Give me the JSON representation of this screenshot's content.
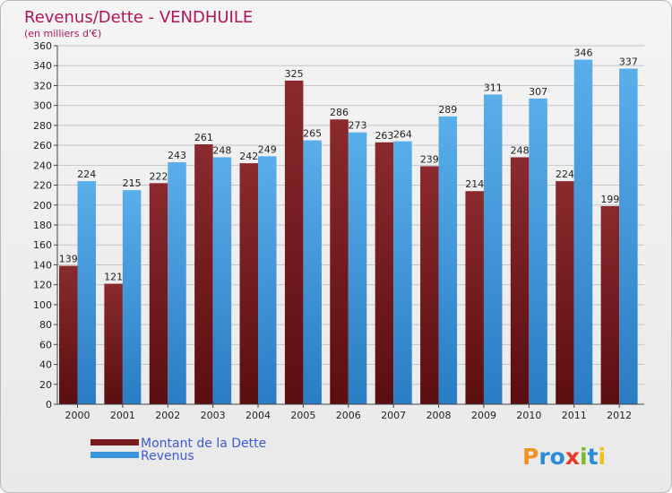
{
  "chart_data": {
    "type": "bar",
    "title": "Revenus/Dette - VENDHUILE",
    "subtitle": "(en milliers d'€)",
    "xlabel": "",
    "ylabel": "",
    "ylim": [
      0,
      360
    ],
    "ytick_step": 20,
    "grid": true,
    "categories": [
      "2000",
      "2001",
      "2002",
      "2003",
      "2004",
      "2005",
      "2006",
      "2007",
      "2008",
      "2009",
      "2010",
      "2011",
      "2012"
    ],
    "series": [
      {
        "name": "Montant de la Dette",
        "color": "#7a1a1e",
        "values": [
          139,
          121,
          222,
          261,
          242,
          325,
          286,
          263,
          239,
          214,
          248,
          224,
          199
        ]
      },
      {
        "name": "Revenus",
        "color": "#3a96dc",
        "values": [
          224,
          215,
          243,
          248,
          249,
          265,
          273,
          264,
          289,
          311,
          307,
          346,
          337
        ]
      }
    ],
    "legend_position": "bottom-left"
  },
  "logo": {
    "letters": [
      "P",
      "r",
      "o",
      "x",
      "i",
      "t",
      "i"
    ],
    "colors": [
      "#f29222",
      "#2a8cd8",
      "#2a8cd8",
      "#e53a2a",
      "#7cb82f",
      "#2a8cd8",
      "#f2c21a"
    ]
  }
}
